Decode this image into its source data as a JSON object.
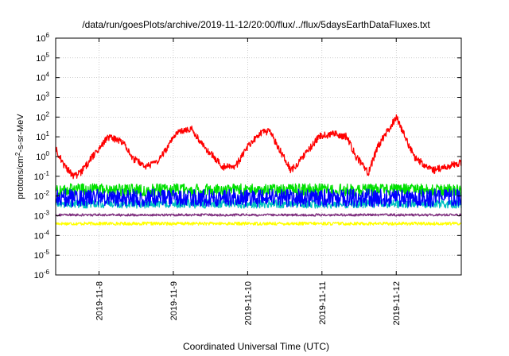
{
  "chart_data": {
    "type": "line",
    "title": "/data/run/goesPlots/archive/2019-11-12/20:00/flux/../flux/5daysEarthDataFluxes.txt",
    "xlabel": "Coordinated Universal Time (UTC)",
    "ylabel_main": "protons/cm",
    "ylabel_sup": "2",
    "ylabel_rest": "-s-sr-MeV",
    "y_scale": "log",
    "ylim": [
      1e-06,
      1000000.0
    ],
    "xlim": [
      "2019-11-07T10:00",
      "2019-11-12T21:00"
    ],
    "y_ticks": [
      {
        "base": "10",
        "exp": "-6",
        "value": 1e-06
      },
      {
        "base": "10",
        "exp": "-5",
        "value": 1e-05
      },
      {
        "base": "10",
        "exp": "-4",
        "value": 0.0001
      },
      {
        "base": "10",
        "exp": "-3",
        "value": 0.001
      },
      {
        "base": "10",
        "exp": "-2",
        "value": 0.01
      },
      {
        "base": "10",
        "exp": "-1",
        "value": 0.1
      },
      {
        "base": "10",
        "exp": "0",
        "value": 1
      },
      {
        "base": "10",
        "exp": "1",
        "value": 10
      },
      {
        "base": "10",
        "exp": "2",
        "value": 100
      },
      {
        "base": "10",
        "exp": "3",
        "value": 1000
      },
      {
        "base": "10",
        "exp": "4",
        "value": 10000
      },
      {
        "base": "10",
        "exp": "5",
        "value": 100000
      },
      {
        "base": "10",
        "exp": "6",
        "value": 1000000
      }
    ],
    "x_ticks": [
      {
        "label": "2019-11-8",
        "date": "2019-11-08"
      },
      {
        "label": "2019-11-9",
        "date": "2019-11-09"
      },
      {
        "label": "2019-11-10",
        "date": "2019-11-10"
      },
      {
        "label": "2019-11-11",
        "date": "2019-11-11"
      },
      {
        "label": "2019-11-12",
        "date": "2019-11-12"
      }
    ],
    "grid": true,
    "series": [
      {
        "color": "#ffff00",
        "x": [
          "2019-11-07T10:00",
          "2019-11-08T00:00",
          "2019-11-09T00:00",
          "2019-11-10T00:00",
          "2019-11-11T00:00",
          "2019-11-12T00:00",
          "2019-11-12T21:00"
        ],
        "y": [
          0.0004,
          0.0004,
          0.0004,
          0.0004,
          0.0004,
          0.0004,
          0.0004
        ]
      },
      {
        "color": "#7f2f7f",
        "x": [
          "2019-11-07T10:00",
          "2019-11-08T00:00",
          "2019-11-09T00:00",
          "2019-11-10T00:00",
          "2019-11-11T00:00",
          "2019-11-12T00:00",
          "2019-11-12T21:00"
        ],
        "y": [
          0.0011,
          0.0011,
          0.0011,
          0.0011,
          0.0011,
          0.0011,
          0.0011
        ]
      },
      {
        "color": "#00c0c0",
        "x": [
          "2019-11-07T10:00",
          "2019-11-08T00:00",
          "2019-11-09T00:00",
          "2019-11-10T00:00",
          "2019-11-11T00:00",
          "2019-11-12T00:00",
          "2019-11-12T21:00"
        ],
        "y": [
          0.004,
          0.004,
          0.004,
          0.004,
          0.004,
          0.004,
          0.004
        ]
      },
      {
        "color": "#00e000",
        "x": [
          "2019-11-07T10:00",
          "2019-11-08T00:00",
          "2019-11-09T00:00",
          "2019-11-10T00:00",
          "2019-11-11T00:00",
          "2019-11-12T00:00",
          "2019-11-12T21:00"
        ],
        "y": [
          0.02,
          0.02,
          0.02,
          0.02,
          0.02,
          0.02,
          0.02
        ]
      },
      {
        "color": "#0000ff",
        "x": [
          "2019-11-07T10:00",
          "2019-11-08T00:00",
          "2019-11-09T00:00",
          "2019-11-10T00:00",
          "2019-11-11T00:00",
          "2019-11-12T00:00",
          "2019-11-12T21:00"
        ],
        "y": [
          0.008,
          0.008,
          0.008,
          0.008,
          0.008,
          0.008,
          0.008
        ]
      },
      {
        "color": "#ff0000",
        "x": [
          "2019-11-07T10:00",
          "2019-11-07T13:00",
          "2019-11-07T16:00",
          "2019-11-07T18:00",
          "2019-11-07T22:00",
          "2019-11-08T03:00",
          "2019-11-08T08:00",
          "2019-11-08T11:00",
          "2019-11-08T15:00",
          "2019-11-08T19:00",
          "2019-11-08T23:00",
          "2019-11-09T02:00",
          "2019-11-09T06:00",
          "2019-11-09T10:00",
          "2019-11-09T16:00",
          "2019-11-09T20:00",
          "2019-11-10T00:00",
          "2019-11-10T04:00",
          "2019-11-10T07:00",
          "2019-11-10T14:00",
          "2019-11-10T19:00",
          "2019-11-10T23:00",
          "2019-11-11T04:00",
          "2019-11-11T08:00",
          "2019-11-11T11:00",
          "2019-11-11T15:00",
          "2019-11-11T18:00",
          "2019-11-11T20:00",
          "2019-11-12T00:00",
          "2019-11-12T06:00",
          "2019-11-12T12:00",
          "2019-11-12T16:00",
          "2019-11-12T21:00"
        ],
        "y": [
          2.5,
          0.3,
          0.1,
          0.15,
          1,
          10,
          5,
          0.8,
          0.3,
          0.5,
          5,
          20,
          25,
          3,
          0.3,
          0.3,
          3,
          15,
          20,
          0.2,
          1.5,
          10,
          15,
          10,
          1,
          0.15,
          3,
          10,
          100,
          0.8,
          0.2,
          0.3,
          0.5
        ]
      }
    ]
  }
}
